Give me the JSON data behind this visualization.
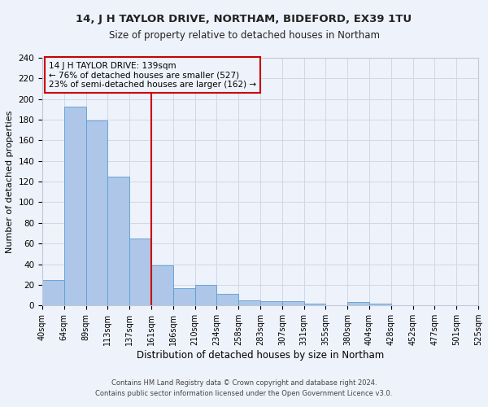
{
  "title1": "14, J H TAYLOR DRIVE, NORTHAM, BIDEFORD, EX39 1TU",
  "title2": "Size of property relative to detached houses in Northam",
  "xlabel": "Distribution of detached houses by size in Northam",
  "ylabel": "Number of detached properties",
  "footer1": "Contains HM Land Registry data © Crown copyright and database right 2024.",
  "footer2": "Contains public sector information licensed under the Open Government Licence v3.0.",
  "annotation_line1": "14 J H TAYLOR DRIVE: 139sqm",
  "annotation_line2": "← 76% of detached houses are smaller (527)",
  "annotation_line3": "23% of semi-detached houses are larger (162) →",
  "bar_labels": [
    "40sqm",
    "64sqm",
    "89sqm",
    "113sqm",
    "137sqm",
    "161sqm",
    "186sqm",
    "210sqm",
    "234sqm",
    "258sqm",
    "283sqm",
    "307sqm",
    "331sqm",
    "355sqm",
    "380sqm",
    "404sqm",
    "428sqm",
    "452sqm",
    "477sqm",
    "501sqm",
    "525sqm"
  ],
  "bar_values": [
    25,
    193,
    179,
    125,
    65,
    39,
    17,
    20,
    11,
    5,
    4,
    4,
    2,
    0,
    3,
    2,
    0,
    0,
    0,
    0
  ],
  "bar_color": "#aec6e8",
  "bar_edge_color": "#5a9fd4",
  "vline_color": "#cc0000",
  "vline_x": 4.5,
  "annotation_box_edge_color": "#cc0000",
  "grid_color": "#d0d8e8",
  "background_color": "#eef2fa",
  "ylim": [
    0,
    240
  ],
  "yticks": [
    0,
    20,
    40,
    60,
    80,
    100,
    120,
    140,
    160,
    180,
    200,
    220,
    240
  ]
}
